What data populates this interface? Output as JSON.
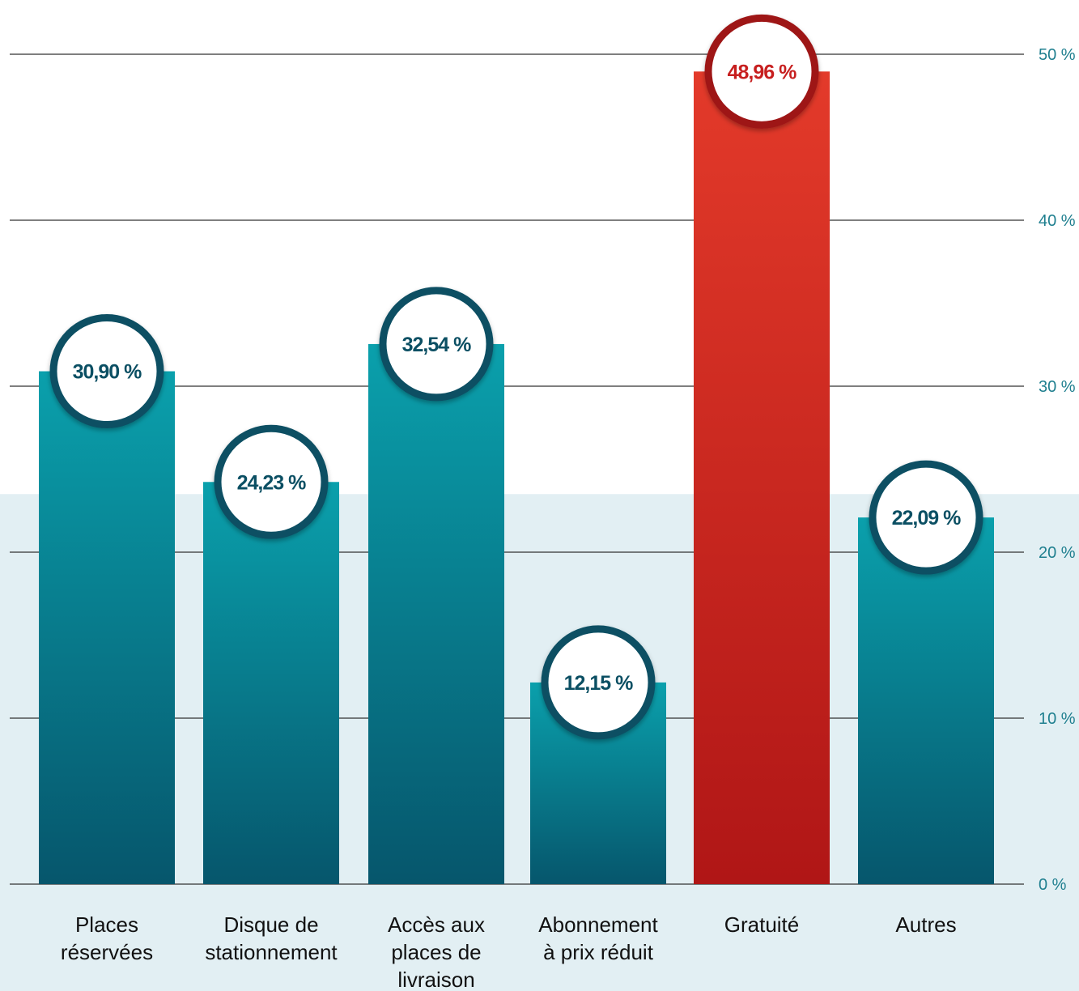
{
  "chart_data": {
    "type": "bar",
    "categories": [
      [
        "Places",
        "réservées"
      ],
      [
        "Disque de",
        "stationnement"
      ],
      [
        "Accès aux",
        "places de",
        "livraison"
      ],
      [
        "Abonnement",
        "à prix réduit"
      ],
      [
        "Gratuité"
      ],
      [
        "Autres"
      ]
    ],
    "values": [
      30.9,
      24.23,
      32.54,
      12.15,
      48.96,
      22.09
    ],
    "value_labels": [
      "30,90 %",
      "24,23 %",
      "32,54 %",
      "12,15 %",
      "48,96 %",
      "22,09 %"
    ],
    "highlight_index": 4,
    "ylim": [
      0,
      50
    ],
    "yticks": [
      0,
      10,
      20,
      30,
      40,
      50
    ],
    "ytick_labels": [
      "0 %",
      "10 %",
      "20 %",
      "30 %",
      "40 %",
      "50 %"
    ],
    "y_axis_side": "right",
    "grid": true,
    "background_band_max": 23.5,
    "colors": {
      "bar_top": "#0aa0ac",
      "bar_bottom": "#06566c",
      "highlight_top": "#e33a2a",
      "highlight_bottom": "#b01616",
      "bubble_ring": "#0b4f63",
      "bubble_ring_highlight": "#9e1418",
      "label_text": "#0b4f63",
      "label_text_highlight": "#c71f1f",
      "tick_text": "#1f7f8f",
      "band": "#e2eff3",
      "grid": "#333333"
    }
  }
}
